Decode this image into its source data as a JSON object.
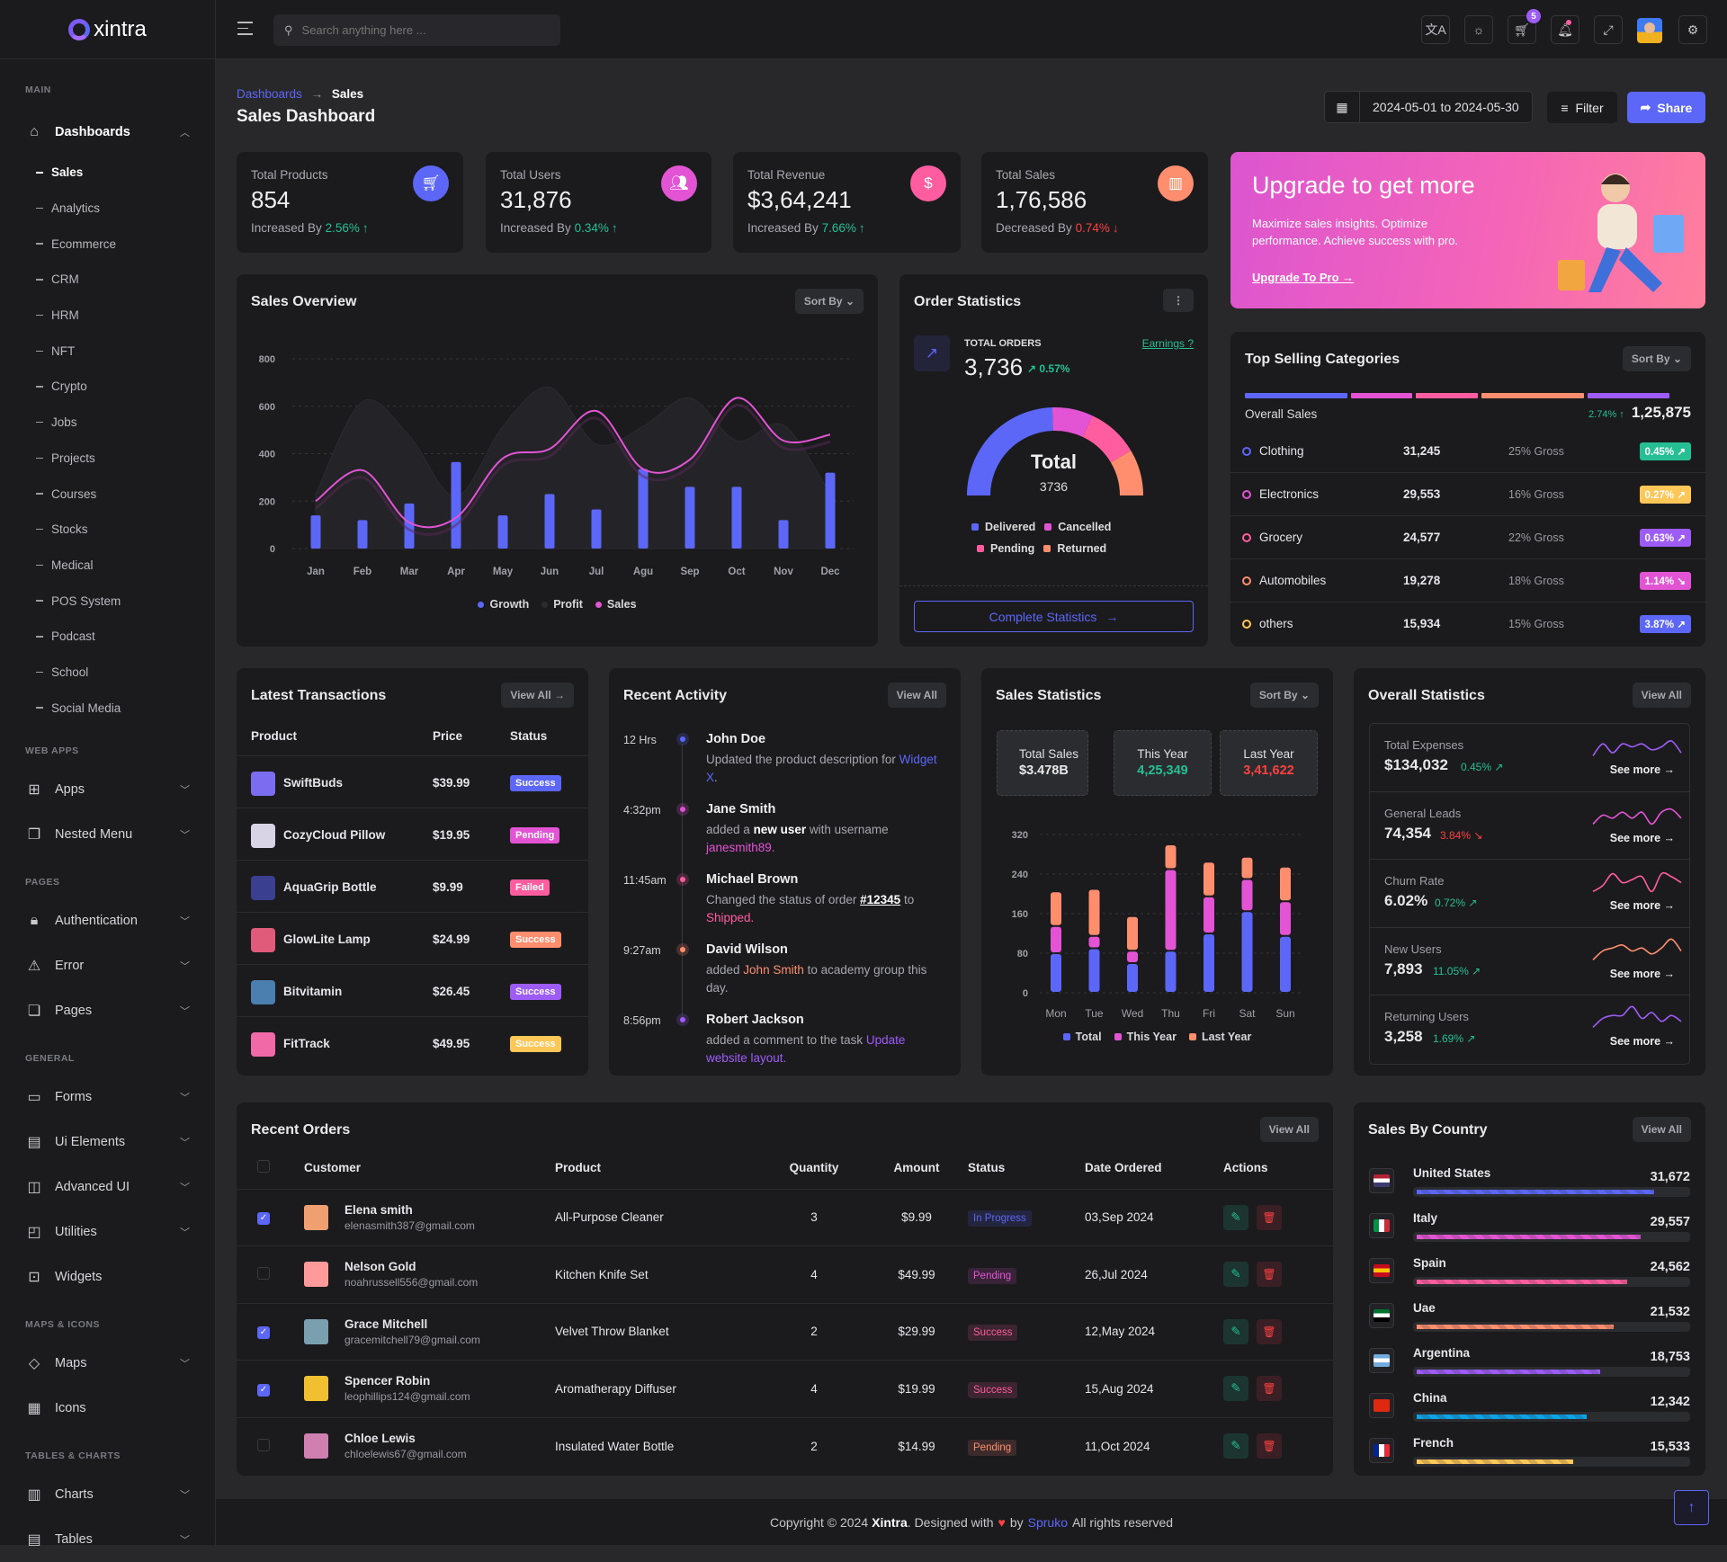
{
  "brand": {
    "name": "xintra"
  },
  "header": {
    "search_placeholder": "Search anything here ...",
    "cart_count": "5",
    "icons": [
      "translate-icon",
      "sun-icon",
      "cart-icon",
      "bell-icon",
      "fullscreen-icon",
      "avatar",
      "gear-icon"
    ]
  },
  "sidebar": {
    "sections": [
      {
        "label": "MAIN",
        "items": [
          {
            "label": "Dashboards",
            "icon": "home-icon",
            "glyph": "⌂",
            "expanded": true,
            "children": [
              "Sales",
              "Analytics",
              "Ecommerce",
              "CRM",
              "HRM",
              "NFT",
              "Crypto",
              "Jobs",
              "Projects",
              "Courses",
              "Stocks",
              "Medical",
              "POS System",
              "Podcast",
              "School",
              "Social Media"
            ],
            "active_child": "Sales"
          }
        ]
      },
      {
        "label": "WEB APPS",
        "items": [
          {
            "label": "Apps",
            "icon": "apps-icon",
            "glyph": "⊞"
          },
          {
            "label": "Nested Menu",
            "icon": "nested-menu-icon",
            "glyph": "❐"
          }
        ]
      },
      {
        "label": "PAGES",
        "items": [
          {
            "label": "Authentication",
            "icon": "lock-icon",
            "glyph": "🔒︎"
          },
          {
            "label": "Error",
            "icon": "warning-icon",
            "glyph": "⚠︎"
          },
          {
            "label": "Pages",
            "icon": "pages-icon",
            "glyph": "❏"
          }
        ]
      },
      {
        "label": "GENERAL",
        "items": [
          {
            "label": "Forms",
            "icon": "clipboard-icon",
            "glyph": "▭"
          },
          {
            "label": "Ui Elements",
            "icon": "box-icon",
            "glyph": "▤"
          },
          {
            "label": "Advanced UI",
            "icon": "layers-icon",
            "glyph": "◫"
          },
          {
            "label": "Utilities",
            "icon": "utilities-icon",
            "glyph": "◰"
          },
          {
            "label": "Widgets",
            "icon": "gift-icon",
            "glyph": "⊡",
            "no_chevron": true
          }
        ]
      },
      {
        "label": "MAPS & ICONS",
        "items": [
          {
            "label": "Maps",
            "icon": "map-icon",
            "glyph": "◇"
          },
          {
            "label": "Icons",
            "icon": "icons-icon",
            "glyph": "▦",
            "no_chevron": true
          }
        ]
      },
      {
        "label": "TABLES & CHARTS",
        "items": [
          {
            "label": "Charts",
            "icon": "chart-icon",
            "glyph": "▥"
          },
          {
            "label": "Tables",
            "icon": "table-icon",
            "glyph": "▤"
          }
        ]
      }
    ]
  },
  "page": {
    "breadcrumb_parent": "Dashboards",
    "breadcrumb_current": "Sales",
    "title": "Sales Dashboard",
    "date_range": "2024-05-01 to 2024-05-30",
    "filter_label": "Filter",
    "share_label": "Share"
  },
  "stats": [
    {
      "label": "Total Products",
      "value": "854",
      "prefix": "Increased By",
      "change": "2.56%",
      "arrow": "↑",
      "trend": "up",
      "color": "#5c67f7",
      "icon": "cart-icon",
      "glyph": "🛒︎"
    },
    {
      "label": "Total Users",
      "value": "31,876",
      "prefix": "Increased By",
      "change": "0.34%",
      "arrow": "↑",
      "trend": "up",
      "color": "#e354d4",
      "icon": "users-icon",
      "glyph": "👥︎"
    },
    {
      "label": "Total Revenue",
      "value": "$3,64,241",
      "prefix": "Increased By",
      "change": "7.66%",
      "arrow": "↑",
      "trend": "up",
      "color": "#ff5d9f",
      "icon": "dollar-icon",
      "glyph": "$"
    },
    {
      "label": "Total Sales",
      "value": "1,76,586",
      "prefix": "Decreased By",
      "change": "0.74%",
      "arrow": "↓",
      "trend": "down",
      "color": "#ff8e6f",
      "icon": "bar-chart-icon",
      "glyph": "▥"
    }
  ],
  "upgrade": {
    "title": "Upgrade to get more",
    "text": "Maximize sales insights. Optimize performance. Achieve success with pro.",
    "link": "Upgrade To Pro →"
  },
  "sales_overview": {
    "title": "Sales Overview",
    "sort_label": "Sort By"
  },
  "order_stats": {
    "title": "Order Statistics",
    "total_label": "TOTAL ORDERS",
    "total_value": "3,736",
    "change": "0.57%",
    "earnings_link": "Earnings ?",
    "gauge_title": "Total",
    "gauge_value": "3736",
    "button": "Complete Statistics",
    "legend": [
      {
        "name": "Delivered",
        "color": "#5c67f7"
      },
      {
        "name": "Cancelled",
        "color": "#e354d4"
      },
      {
        "name": "Pending",
        "color": "#ff5d9f"
      },
      {
        "name": "Returned",
        "color": "#ff8e6f"
      }
    ]
  },
  "top_selling": {
    "title": "Top Selling Categories",
    "sort_label": "Sort By",
    "overall_label": "Overall Sales",
    "overall_change": "2.74%",
    "overall_value": "1,25,875",
    "bar_segments": [
      {
        "share": 25,
        "color": "#5c67f7"
      },
      {
        "share": 15,
        "color": "#e354d4"
      },
      {
        "share": 15,
        "color": "#ff5d9f"
      },
      {
        "share": 25,
        "color": "#ff8e6f"
      },
      {
        "share": 20,
        "color": "#9e5cf7"
      }
    ],
    "rows": [
      {
        "name": "Clothing",
        "value": "31,245",
        "gross": "25% Gross",
        "badge": "0.45%",
        "trend": "up",
        "color": "#5c67f7",
        "badge_color": "#26bf94"
      },
      {
        "name": "Electronics",
        "value": "29,553",
        "gross": "16% Gross",
        "badge": "0.27%",
        "trend": "up",
        "color": "#e354d4",
        "badge_color": "#ffc658"
      },
      {
        "name": "Grocery",
        "value": "24,577",
        "gross": "22% Gross",
        "badge": "0.63%",
        "trend": "up",
        "color": "#ff5d9f",
        "badge_color": "#9e5cf7"
      },
      {
        "name": "Automobiles",
        "value": "19,278",
        "gross": "18% Gross",
        "badge": "1.14%",
        "trend": "down",
        "color": "#ff8e6f",
        "badge_color": "#e354d4"
      },
      {
        "name": "others",
        "value": "15,934",
        "gross": "15% Gross",
        "badge": "3.87%",
        "trend": "up",
        "color": "#ffc658",
        "badge_color": "#5c67f7"
      }
    ]
  },
  "transactions": {
    "title": "Latest Transactions",
    "view_all": "View All →",
    "columns": [
      "Product",
      "Price",
      "Status"
    ],
    "rows": [
      {
        "product": "SwiftBuds",
        "price": "$39.99",
        "status": "Success",
        "color": "#5c67f7",
        "thumb": "#7b6cf0"
      },
      {
        "product": "CozyCloud Pillow",
        "price": "$19.95",
        "status": "Pending",
        "color": "#e354d4",
        "thumb": "#d9d3e6"
      },
      {
        "product": "AquaGrip Bottle",
        "price": "$9.99",
        "status": "Failed",
        "color": "#ff5d9f",
        "thumb": "#3a3f8f"
      },
      {
        "product": "GlowLite Lamp",
        "price": "$24.99",
        "status": "Success",
        "color": "#ff8e6f",
        "thumb": "#e05a7a"
      },
      {
        "product": "Bitvitamin",
        "price": "$26.45",
        "status": "Success",
        "color": "#9e5cf7",
        "thumb": "#4a7fb0"
      },
      {
        "product": "FitTrack",
        "price": "$49.95",
        "status": "Success",
        "color": "#ffc658",
        "thumb": "#f06aa8"
      }
    ]
  },
  "activity": {
    "title": "Recent Activity",
    "view_all": "View All",
    "items": [
      {
        "time": "12 Hrs",
        "name": "John Doe",
        "color": "#5c67f7",
        "parts": [
          {
            "t": "Updated the product description for "
          },
          {
            "t": "Widget X",
            "c": "#5c67f7"
          },
          {
            "t": "."
          }
        ]
      },
      {
        "time": "4:32pm",
        "name": "Jane Smith",
        "color": "#e354d4",
        "parts": [
          {
            "t": "added a "
          },
          {
            "t": "new user",
            "b": true
          },
          {
            "t": " with username "
          },
          {
            "t": "janesmith89.",
            "c": "#e354d4"
          }
        ]
      },
      {
        "time": "11:45am",
        "name": "Michael Brown",
        "color": "#ff5d9f",
        "parts": [
          {
            "t": "Changed the status of order "
          },
          {
            "t": "#12345",
            "b": true,
            "u": true
          },
          {
            "t": " to "
          },
          {
            "t": "Shipped.",
            "c": "#ff5d9f"
          }
        ]
      },
      {
        "time": "9:27am",
        "name": "David Wilson",
        "color": "#ff8e6f",
        "parts": [
          {
            "t": "added "
          },
          {
            "t": "John Smith",
            "c": "#ff8e6f"
          },
          {
            "t": " to academy group this day."
          }
        ]
      },
      {
        "time": "8:56pm",
        "name": "Robert Jackson",
        "color": "#9e5cf7",
        "parts": [
          {
            "t": "added a comment to the task "
          },
          {
            "t": "Update website layout.",
            "c": "#9e5cf7"
          }
        ]
      }
    ]
  },
  "sales_statistics": {
    "title": "Sales Statistics",
    "sort_label": "Sort By",
    "boxes": [
      {
        "label": "Total Sales",
        "value": "$3.478B",
        "color": "#e8e8ea"
      },
      {
        "label": "This Year",
        "value": "4,25,349",
        "color": "#26bf94"
      },
      {
        "label": "Last Year",
        "value": "3,41,622",
        "color": "#fb4242"
      }
    ]
  },
  "overall_stats": {
    "title": "Overall Statistics",
    "view_all": "View All",
    "see_more": "See more →",
    "items": [
      {
        "label": "Total Expenses",
        "value": "$134,032",
        "change": "0.45%",
        "trend": "up",
        "color": "#9e5cf7",
        "spark": [
          2,
          6,
          3,
          6,
          5,
          6,
          4,
          5,
          7,
          3
        ]
      },
      {
        "label": "General Leads",
        "value": "74,354",
        "change": "3.84%",
        "trend": "down",
        "color": "#e354d4",
        "spark": [
          2,
          5,
          4,
          6,
          4,
          6,
          2,
          6,
          7,
          4
        ]
      },
      {
        "label": "Churn Rate",
        "value": "6.02%",
        "change": "0.72%",
        "trend": "up",
        "color": "#ff5d9f",
        "spark": [
          2,
          4,
          8,
          5,
          6,
          7,
          2,
          8,
          7,
          5
        ]
      },
      {
        "label": "New Users",
        "value": "7,893",
        "change": "11.05%",
        "trend": "up",
        "color": "#ff8e6f",
        "spark": [
          2,
          5,
          6,
          7,
          5,
          6,
          4,
          6,
          9,
          5
        ]
      },
      {
        "label": "Returning Users",
        "value": "3,258",
        "change": "1.69%",
        "trend": "up",
        "color": "#9e5cf7",
        "spark": [
          2,
          5,
          6,
          6,
          9,
          5,
          7,
          4,
          6,
          4
        ]
      }
    ]
  },
  "recent_orders": {
    "title": "Recent Orders",
    "view_all": "View All",
    "columns": [
      "Customer",
      "Product",
      "Quantity",
      "Amount",
      "Status",
      "Date Ordered",
      "Actions"
    ],
    "rows": [
      {
        "checked": true,
        "name": "Elena smith",
        "email": "elenasmith387@gmail.com",
        "product": "All-Purpose Cleaner",
        "qty": "3",
        "amount": "$9.99",
        "status": "In Progress",
        "status_color": "#5c67f7",
        "date": "03,Sep 2024",
        "avatar": "#f0a070"
      },
      {
        "checked": false,
        "name": "Nelson Gold",
        "email": "noahrussell556@gmail.com",
        "product": "Kitchen Knife Set",
        "qty": "4",
        "amount": "$49.99",
        "status": "Pending",
        "status_color": "#e354d4",
        "date": "26,Jul 2024",
        "avatar": "#ff9a9a"
      },
      {
        "checked": true,
        "name": "Grace Mitchell",
        "email": "gracemitchell79@gmail.com",
        "product": "Velvet Throw Blanket",
        "qty": "2",
        "amount": "$29.99",
        "status": "Success",
        "status_color": "#ff5d9f",
        "date": "12,May 2024",
        "avatar": "#7aa0b0"
      },
      {
        "checked": true,
        "name": "Spencer Robin",
        "email": "leophillips124@gmail.com",
        "product": "Aromatherapy Diffuser",
        "qty": "4",
        "amount": "$19.99",
        "status": "Success",
        "status_color": "#ff5d9f",
        "date": "15,Aug 2024",
        "avatar": "#f0c030"
      },
      {
        "checked": false,
        "name": "Chloe Lewis",
        "email": "chloelewis67@gmail.com",
        "product": "Insulated Water Bottle",
        "qty": "2",
        "amount": "$14.99",
        "status": "Pending",
        "status_color": "#ff8e6f",
        "date": "11,Oct 2024",
        "avatar": "#d080b0"
      }
    ]
  },
  "countries": {
    "title": "Sales By Country",
    "view_all": "View All",
    "rows": [
      {
        "name": "United States",
        "value": "31,672",
        "percent": 88,
        "color": "#5c67f7",
        "flag": [
          "#b22234",
          "#ffffff",
          "#3c3b6e"
        ]
      },
      {
        "name": "Italy",
        "value": "29,557",
        "percent": 83,
        "color": "#e354d4",
        "flag": [
          "#009246",
          "#ffffff",
          "#ce2b37"
        ]
      },
      {
        "name": "Spain",
        "value": "24,562",
        "percent": 78,
        "color": "#ff5d9f",
        "flag": [
          "#c60b1e",
          "#ffc400",
          "#c60b1e"
        ]
      },
      {
        "name": "Uae",
        "value": "21,532",
        "percent": 73,
        "color": "#ff8e6f",
        "flag": [
          "#00732f",
          "#ffffff",
          "#000000"
        ]
      },
      {
        "name": "Argentina",
        "value": "18,753",
        "percent": 68,
        "color": "#9e5cf7",
        "flag": [
          "#74acdf",
          "#ffffff",
          "#74acdf"
        ]
      },
      {
        "name": "China",
        "value": "12,342",
        "percent": 63,
        "color": "#0ca3e7",
        "flag": [
          "#de2910",
          "#de2910",
          "#de2910"
        ]
      },
      {
        "name": "French",
        "value": "15,533",
        "percent": 58,
        "color": "#ffc658",
        "flag": [
          "#002395",
          "#ffffff",
          "#ed2939"
        ]
      }
    ]
  },
  "footer": {
    "prefix": "Copyright © 2024",
    "brand": "Xintra",
    "designed": ". Designed with",
    "by": "by",
    "company": "Spruko",
    "rights": "All rights reserved"
  },
  "chart_data": [
    {
      "type": "bar+line+area",
      "title": "Sales Overview",
      "categories": [
        "Jan",
        "Feb",
        "Mar",
        "Apr",
        "May",
        "Jun",
        "Jul",
        "Agu",
        "Sep",
        "Oct",
        "Nov",
        "Dec"
      ],
      "ylim": [
        0,
        800
      ],
      "yticks": [
        0,
        200,
        400,
        600,
        800
      ],
      "grid": true,
      "legend": "bottom",
      "series": [
        {
          "name": "Growth",
          "type": "bar",
          "color": "#5c67f7",
          "values": [
            140,
            120,
            190,
            365,
            140,
            230,
            165,
            335,
            260,
            260,
            120,
            320
          ]
        },
        {
          "name": "Profit",
          "type": "area",
          "color": "#26262b",
          "values": [
            230,
            620,
            475,
            220,
            515,
            680,
            440,
            515,
            635,
            455,
            520,
            230
          ]
        },
        {
          "name": "Sales",
          "type": "line",
          "color": "#e354d4",
          "values": [
            200,
            330,
            110,
            130,
            380,
            420,
            580,
            335,
            375,
            635,
            455,
            480
          ]
        }
      ]
    },
    {
      "type": "bar",
      "stacked": true,
      "title": "Sales Statistics",
      "categories": [
        "Mon",
        "Tue",
        "Wed",
        "Thu",
        "Fri",
        "Sat",
        "Sun"
      ],
      "ylim": [
        0,
        320
      ],
      "yticks": [
        0,
        80,
        160,
        240,
        320
      ],
      "grid": true,
      "legend": "bottom",
      "series": [
        {
          "name": "Total",
          "color": "#5c67f7",
          "values": [
            80,
            90,
            60,
            85,
            120,
            165,
            115
          ]
        },
        {
          "name": "This Year",
          "color": "#e354d4",
          "values": [
            55,
            25,
            25,
            165,
            75,
            65,
            70
          ]
        },
        {
          "name": "Last Year",
          "color": "#ff8e6f",
          "values": [
            70,
            95,
            70,
            50,
            70,
            45,
            70
          ]
        }
      ]
    },
    {
      "type": "pie",
      "title": "Total",
      "semi_donut": true,
      "categories": [
        "Delivered",
        "Cancelled",
        "Pending",
        "Returned"
      ],
      "values": [
        49,
        15,
        19,
        17
      ],
      "colors": [
        "#5c67f7",
        "#e354d4",
        "#ff5d9f",
        "#ff8e6f"
      ]
    }
  ]
}
